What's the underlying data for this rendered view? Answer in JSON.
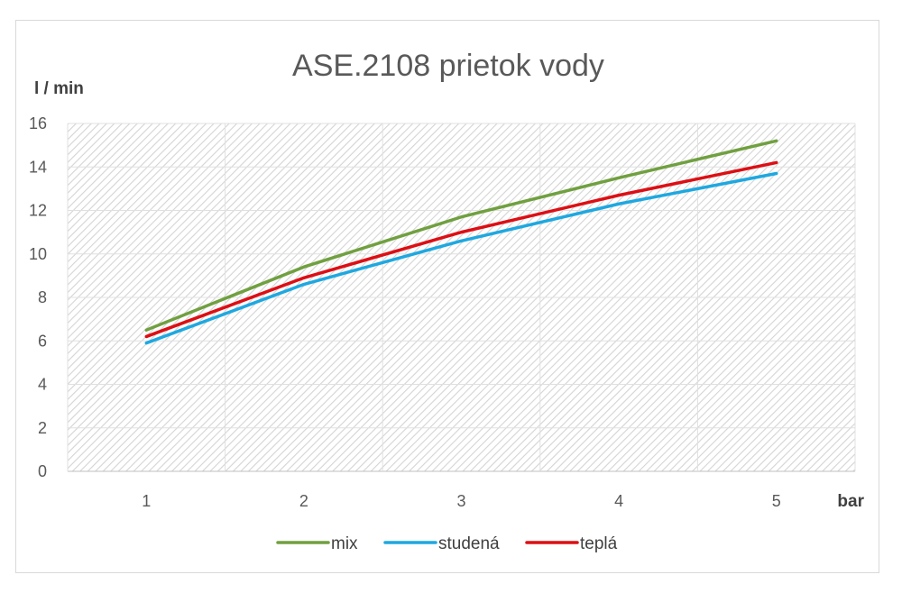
{
  "chart_data": {
    "type": "line",
    "title": "ASE.2108 prietok vody",
    "xlabel": "bar",
    "ylabel": "l / min",
    "categories": [
      "1",
      "2",
      "3",
      "4",
      "5"
    ],
    "ylim": [
      0,
      16
    ],
    "yticks": [
      "0",
      "2",
      "4",
      "6",
      "8",
      "10",
      "12",
      "14",
      "16"
    ],
    "grid": true,
    "legend_position": "bottom",
    "series": [
      {
        "name": "mix",
        "color": "#70a03f",
        "values": [
          6.5,
          9.4,
          11.7,
          13.5,
          15.2
        ]
      },
      {
        "name": "studená",
        "color": "#1fa8e0",
        "values": [
          5.9,
          8.6,
          10.6,
          12.3,
          13.7
        ]
      },
      {
        "name": "teplá",
        "color": "#dd0f14",
        "values": [
          6.2,
          8.9,
          11.0,
          12.7,
          14.2
        ]
      }
    ]
  }
}
